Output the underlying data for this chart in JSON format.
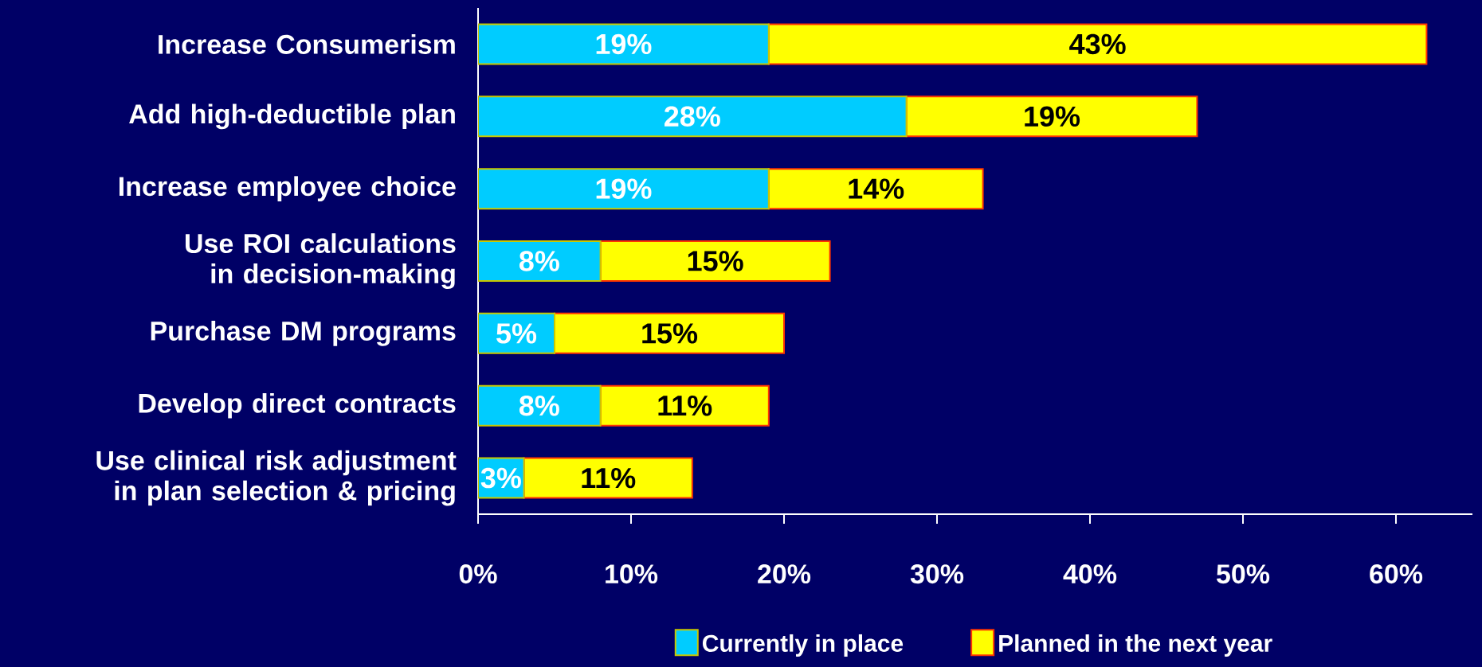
{
  "chart_data": {
    "type": "bar",
    "orientation": "horizontal",
    "stacked": true,
    "categories": [
      "Increase Consumerism",
      "Add high-deductible plan",
      "Increase employee choice",
      "Use ROI calculations in decision-making",
      "Purchase DM programs",
      "Develop direct contracts",
      "Use clinical risk adjustment in plan selection & pricing"
    ],
    "series": [
      {
        "name": "Currently in place",
        "color": "#00ccff",
        "values": [
          19,
          28,
          19,
          8,
          5,
          8,
          3
        ],
        "value_labels": [
          "19%",
          "28%",
          "19%",
          "8%",
          "5%",
          "8%",
          "3%"
        ]
      },
      {
        "name": "Planned in the next year",
        "color": "#ffff00",
        "values": [
          43,
          19,
          14,
          15,
          15,
          11,
          11
        ],
        "value_labels": [
          "43%",
          "19%",
          "14%",
          "15%",
          "15%",
          "11%",
          "11%"
        ]
      }
    ],
    "xlim": [
      0,
      65
    ],
    "xticks": [
      {
        "value": 0,
        "label": "0%"
      },
      {
        "value": 10,
        "label": "10%"
      },
      {
        "value": 20,
        "label": "20%"
      },
      {
        "value": 30,
        "label": "30%"
      },
      {
        "value": 40,
        "label": "40%"
      },
      {
        "value": 50,
        "label": "50%"
      },
      {
        "value": 60,
        "label": "60%"
      }
    ],
    "legend": "bottom"
  }
}
